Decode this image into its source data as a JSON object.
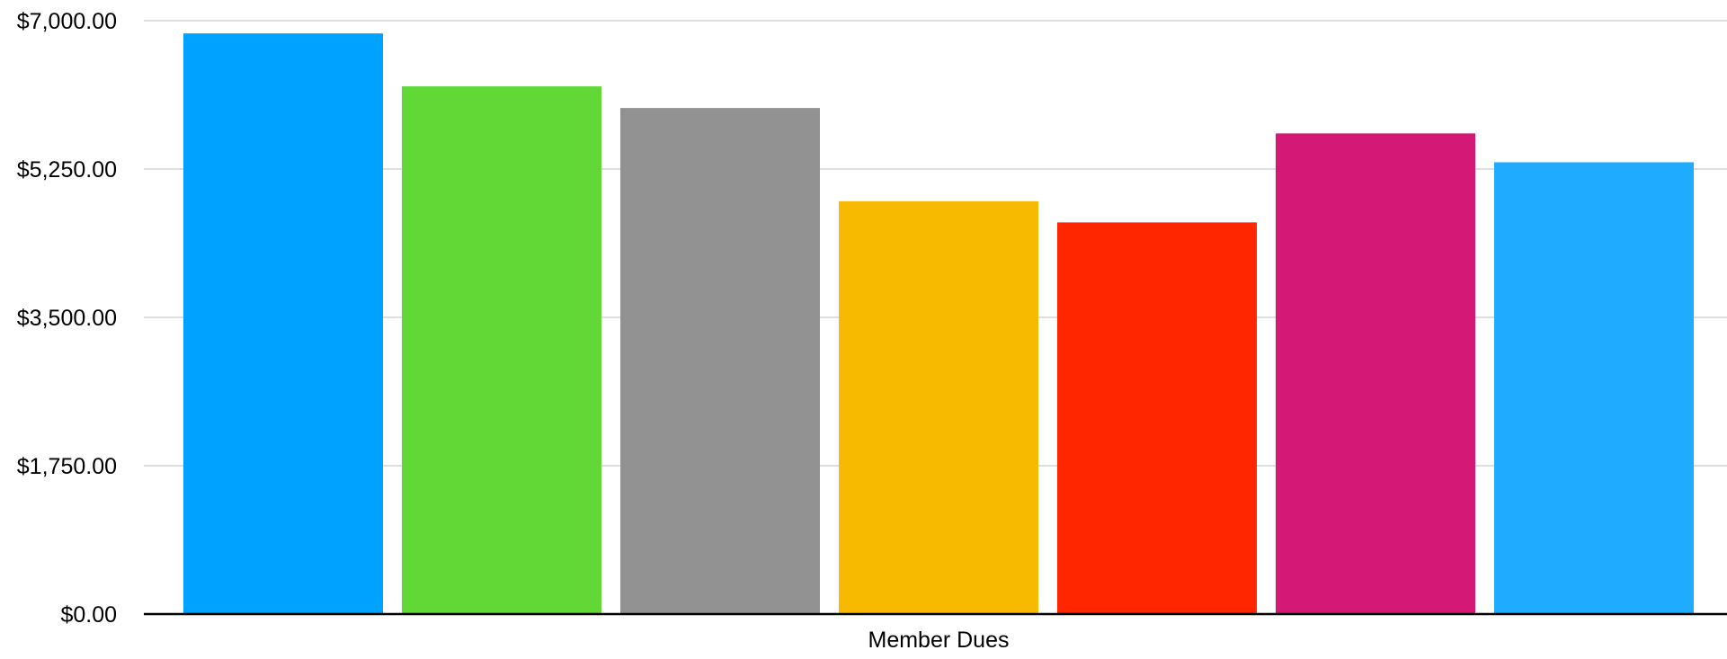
{
  "chart_data": {
    "type": "bar",
    "categories": [
      "Member Dues"
    ],
    "series": [
      {
        "values": [
          6850
        ],
        "color": "#00A2FF"
      },
      {
        "values": [
          6225
        ],
        "color": "#61D836"
      },
      {
        "values": [
          5970
        ],
        "color": "#929292"
      },
      {
        "values": [
          4870
        ],
        "color": "#F8BA00"
      },
      {
        "values": [
          4620
        ],
        "color": "#FF2600"
      },
      {
        "values": [
          5670
        ],
        "color": "#D41876"
      },
      {
        "values": [
          5330
        ],
        "color": "#1FABFF"
      }
    ],
    "title": "",
    "xlabel": "",
    "ylabel": "",
    "ylim": [
      0,
      7000
    ],
    "yticks": [
      0,
      1750,
      3500,
      5250,
      7000
    ],
    "ytick_labels": [
      "$0.00",
      "$1,750.00",
      "$3,500.00",
      "$5,250.00",
      "$7,000.00"
    ],
    "grid": true,
    "legend": "none"
  }
}
